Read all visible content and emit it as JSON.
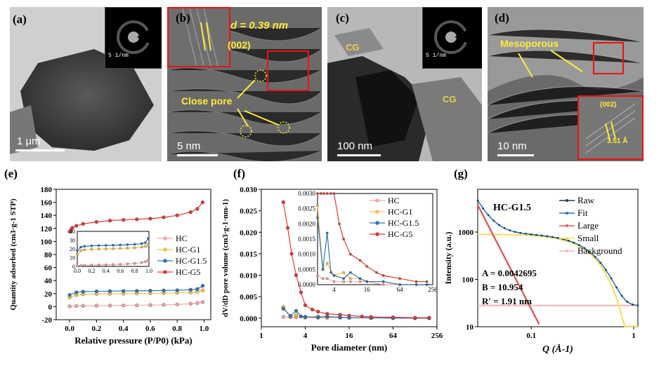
{
  "panels": {
    "a": {
      "label": "(a)",
      "scale": "1 μm",
      "inset_scale": "5 1/nm"
    },
    "b": {
      "label": "(b)",
      "d_label": "d = 0.39 nm",
      "plane": "(002)",
      "annotation": "Close pore",
      "scale": "5 nm"
    },
    "c": {
      "label": "(c)",
      "cg1": "CG",
      "cg2": "CG",
      "scale": "100 nm",
      "inset_scale": "5 1/nm"
    },
    "d": {
      "label": "(d)",
      "annotation": "Mesoporous",
      "plane": "(002)",
      "spacing": "3.51 Å",
      "scale": "10 nm"
    },
    "e": {
      "label": "(e)"
    },
    "f": {
      "label": "(f)"
    },
    "g": {
      "label": "(g)"
    }
  },
  "chart_data": [
    {
      "type": "line",
      "id": "e",
      "xlabel": "Relative pressure (P/P0) (kPa)",
      "ylabel": "Quantity adsorbed (cm3·g-1 STP)",
      "xlim": [
        -0.1,
        1.05
      ],
      "ylim": [
        -20,
        180
      ],
      "xticks": [
        "0.0",
        "0.2",
        "0.4",
        "0.6",
        "0.8",
        "1.0"
      ],
      "yticks": [
        "-20",
        "0",
        "20",
        "40",
        "60",
        "80",
        "100",
        "120",
        "140",
        "160",
        "180"
      ],
      "legend": [
        "HC",
        "HC-G1",
        "HC-G1.5",
        "HC-G5"
      ],
      "colors": [
        "#f4a6a6",
        "#f3c34f",
        "#2f75b5",
        "#e03a3a"
      ],
      "series": [
        {
          "name": "HC",
          "x": [
            0.0,
            0.05,
            0.1,
            0.2,
            0.3,
            0.4,
            0.5,
            0.6,
            0.7,
            0.8,
            0.9,
            0.95,
            0.99
          ],
          "y": [
            0.5,
            1,
            1.2,
            1.5,
            1.7,
            1.9,
            2.1,
            2.4,
            2.8,
            3.4,
            4.5,
            5.5,
            7
          ]
        },
        {
          "name": "HC-G1",
          "x": [
            0.0,
            0.05,
            0.1,
            0.2,
            0.3,
            0.4,
            0.5,
            0.6,
            0.7,
            0.8,
            0.9,
            0.95,
            0.99
          ],
          "y": [
            14,
            18,
            19,
            19.5,
            19.8,
            20,
            20.2,
            20.5,
            20.8,
            21.2,
            22,
            23,
            25
          ]
        },
        {
          "name": "HC-G1.5",
          "x": [
            0.0,
            0.05,
            0.1,
            0.2,
            0.3,
            0.4,
            0.5,
            0.6,
            0.7,
            0.8,
            0.9,
            0.95,
            0.99
          ],
          "y": [
            18,
            22,
            23,
            23.5,
            23.8,
            24,
            24.2,
            24.5,
            24.8,
            25.2,
            26,
            27,
            32
          ]
        },
        {
          "name": "HC-G5",
          "x": [
            0.0,
            0.01,
            0.02,
            0.05,
            0.1,
            0.2,
            0.3,
            0.4,
            0.5,
            0.6,
            0.7,
            0.8,
            0.9,
            0.95,
            0.99
          ],
          "y": [
            115,
            118,
            121,
            124,
            127,
            130,
            132,
            133,
            134,
            135,
            137,
            140,
            145,
            150,
            160
          ]
        }
      ],
      "inset": {
        "xticks": [
          "0.0",
          "0.2",
          "0.4",
          "0.6",
          "0.8",
          "1.0"
        ],
        "yticks": [
          "0",
          "10",
          "20",
          "30",
          "40"
        ],
        "ylim": [
          0,
          40
        ]
      }
    },
    {
      "type": "line",
      "id": "f",
      "xlabel": "Pore diameter (nm)",
      "ylabel": "dV/dD pore volume (cm3·g-1·nm-1)",
      "xscale": "log2",
      "xlim": [
        1,
        256
      ],
      "ylim": [
        -0.002,
        0.03
      ],
      "xticks": [
        "1",
        "4",
        "16",
        "64",
        "256"
      ],
      "yticks": [
        "0.000",
        "0.005",
        "0.010",
        "0.015",
        "0.020",
        "0.025",
        "0.030"
      ],
      "legend": [
        "HC",
        "HC-G1",
        "HC-G1.5",
        "HC-G5"
      ],
      "colors": [
        "#f4a6a6",
        "#f3c34f",
        "#2f75b5",
        "#e03a3a"
      ],
      "series": [
        {
          "name": "HC",
          "x": [
            2,
            2.5,
            3,
            4,
            6,
            8,
            12,
            16,
            32,
            64,
            128,
            200
          ],
          "y": [
            0.0003,
            0.0002,
            0.0002,
            0.0001,
            0.0001,
            0.0001,
            0.0001,
            0.0001,
            0,
            0,
            0,
            0
          ]
        },
        {
          "name": "HC-G1",
          "x": [
            2,
            2.5,
            3,
            4,
            6,
            8,
            12,
            16,
            32,
            64,
            128,
            200
          ],
          "y": [
            0.0026,
            0.0005,
            0.0007,
            0.0003,
            0.0004,
            0.0002,
            0.0002,
            0.0001,
            0.0001,
            0,
            0,
            0
          ]
        },
        {
          "name": "HC-G1.5",
          "x": [
            2,
            2.5,
            3,
            3.5,
            4,
            6,
            8,
            12,
            16,
            32,
            64,
            128,
            200
          ],
          "y": [
            0.0022,
            0.0005,
            0.0017,
            0.0004,
            0.0003,
            0.0002,
            0.0004,
            0.0002,
            0.0001,
            0.0001,
            0,
            0,
            0
          ]
        },
        {
          "name": "HC-G5",
          "x": [
            2,
            2.3,
            2.6,
            3,
            3.5,
            4,
            5,
            6,
            8,
            12,
            16,
            24,
            32,
            64,
            128,
            200
          ],
          "y": [
            0.027,
            0.021,
            0.015,
            0.01,
            0.006,
            0.003,
            0.002,
            0.0015,
            0.001,
            0.0008,
            0.0006,
            0.0004,
            0.0003,
            0.0002,
            0.0001,
            0.0001
          ]
        }
      ],
      "inset": {
        "xticks": [
          "4",
          "16",
          "64",
          "256"
        ],
        "yticks": [
          "0.0000",
          "0.0005",
          "0.0010",
          "0.0015",
          "0.0020",
          "0.0025",
          "0.0030"
        ],
        "ylim": [
          0,
          0.003
        ]
      }
    },
    {
      "type": "line",
      "id": "g",
      "title": "HC-G1.5",
      "xlabel": "Q (Å-1)",
      "ylabel": "Intensity (a.u.)",
      "xscale": "log",
      "yscale": "log",
      "xlim": [
        0.03,
        1.1
      ],
      "ylim": [
        10,
        8000
      ],
      "xticks": [
        "0.1",
        "1"
      ],
      "yticks": [
        "10",
        "100",
        "1000"
      ],
      "legend": [
        "Raw",
        "Fit",
        "Large",
        "Small",
        "Background"
      ],
      "colors": [
        "#1a3a5c",
        "#2f75b5",
        "#e05a5a",
        "#f0e05a",
        "#f4b6b6"
      ],
      "params": {
        "A": "A = 0.0042695",
        "B": "B = 10.954",
        "R": "R' = 1.91 nm"
      }
    }
  ]
}
